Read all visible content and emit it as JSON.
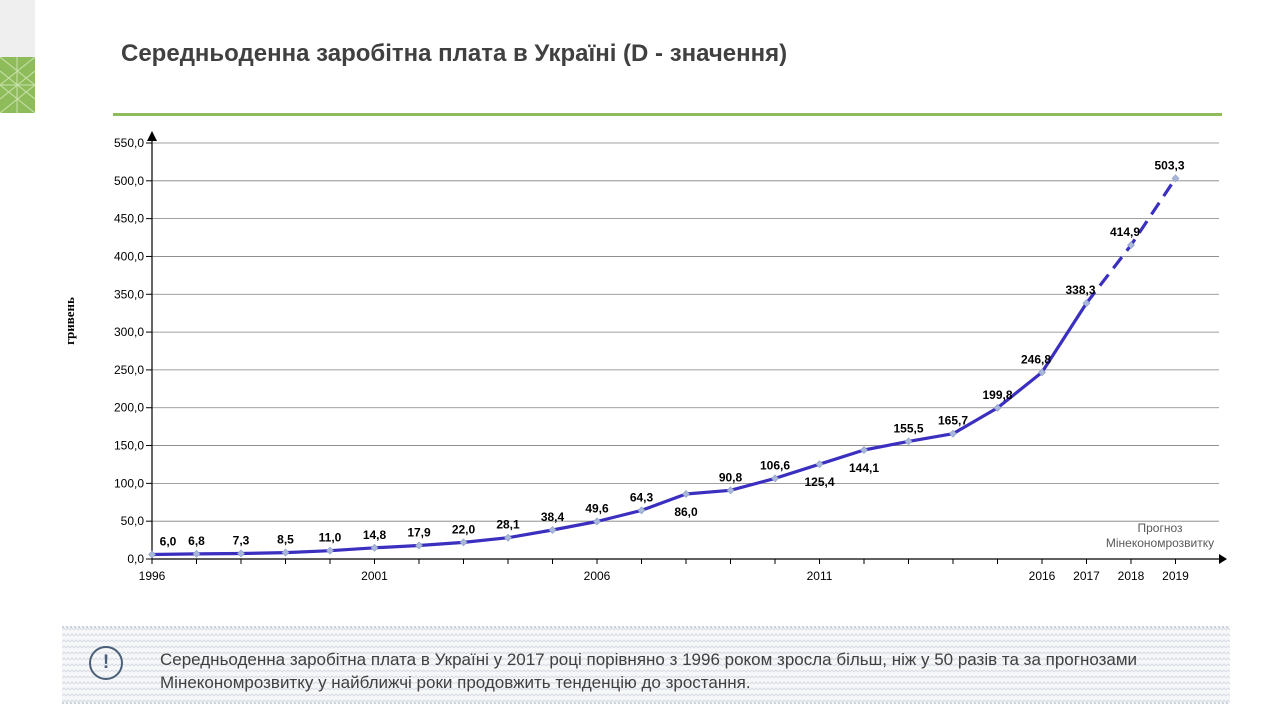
{
  "title": "Середньоденна заробітна плата  в Україні (D - значення)",
  "note": {
    "icon": "exclamation-icon",
    "text": "Середньоденна заробітна плата  в Україні у 2017 році порівняно з 1996 роком зросла більш, ніж у 50 разів та за прогнозами Мінекономрозвитку у найближчі роки продовжить тенденцію до зростання."
  },
  "chart_data": {
    "type": "line",
    "ylabel": "гривень",
    "ylim": [
      0,
      550
    ],
    "yticks": [
      "0,0",
      "50,0",
      "100,0",
      "150,0",
      "200,0",
      "250,0",
      "300,0",
      "350,0",
      "400,0",
      "450,0",
      "500,0",
      "550,0"
    ],
    "xlim": [
      1996,
      2020
    ],
    "xticks": [
      "1996",
      "2001",
      "2006",
      "2011",
      "2016",
      "2017",
      "2018",
      "2019"
    ],
    "grid": true,
    "forecast_note": [
      "Прогноз",
      "Мінекономрозвитку"
    ],
    "series_color": "#3b2fc0",
    "marker_color": "#a9b7d9",
    "grid_color": "#808080",
    "points": [
      {
        "x": 1996,
        "y": 6.0,
        "label": "6,0",
        "pos": "above"
      },
      {
        "x": 1997,
        "y": 6.8,
        "label": "6,8",
        "pos": "above"
      },
      {
        "x": 1998,
        "y": 7.3,
        "label": "7,3",
        "pos": "above"
      },
      {
        "x": 1999,
        "y": 8.5,
        "label": "8,5",
        "pos": "above"
      },
      {
        "x": 2000,
        "y": 11.0,
        "label": "11,0",
        "pos": "above"
      },
      {
        "x": 2001,
        "y": 14.8,
        "label": "14,8",
        "pos": "above"
      },
      {
        "x": 2002,
        "y": 17.9,
        "label": "17,9",
        "pos": "above"
      },
      {
        "x": 2003,
        "y": 22.0,
        "label": "22,0",
        "pos": "above"
      },
      {
        "x": 2004,
        "y": 28.1,
        "label": "28,1",
        "pos": "above"
      },
      {
        "x": 2005,
        "y": 38.4,
        "label": "38,4",
        "pos": "above"
      },
      {
        "x": 2006,
        "y": 49.6,
        "label": "49,6",
        "pos": "above"
      },
      {
        "x": 2007,
        "y": 64.3,
        "label": "64,3",
        "pos": "above"
      },
      {
        "x": 2008,
        "y": 86.0,
        "label": "86,0",
        "pos": "below"
      },
      {
        "x": 2009,
        "y": 90.8,
        "label": "90,8",
        "pos": "above"
      },
      {
        "x": 2010,
        "y": 106.6,
        "label": "106,6",
        "pos": "above"
      },
      {
        "x": 2011,
        "y": 125.4,
        "label": "125,4",
        "pos": "below"
      },
      {
        "x": 2012,
        "y": 144.1,
        "label": "144,1",
        "pos": "below"
      },
      {
        "x": 2013,
        "y": 155.5,
        "label": "155,5",
        "pos": "above"
      },
      {
        "x": 2014,
        "y": 165.7,
        "label": "165,7",
        "pos": "above"
      },
      {
        "x": 2015,
        "y": 199.8,
        "label": "199,8",
        "pos": "above"
      },
      {
        "x": 2016,
        "y": 246.8,
        "label": "246,8",
        "pos": "above"
      },
      {
        "x": 2017,
        "y": 338.3,
        "label": "338,3",
        "pos": "above"
      },
      {
        "x": 2018,
        "y": 414.9,
        "label": "414,9",
        "pos": "above",
        "forecast": true
      },
      {
        "x": 2019,
        "y": 503.3,
        "label": "503,3",
        "pos": "above",
        "forecast": true
      }
    ]
  }
}
